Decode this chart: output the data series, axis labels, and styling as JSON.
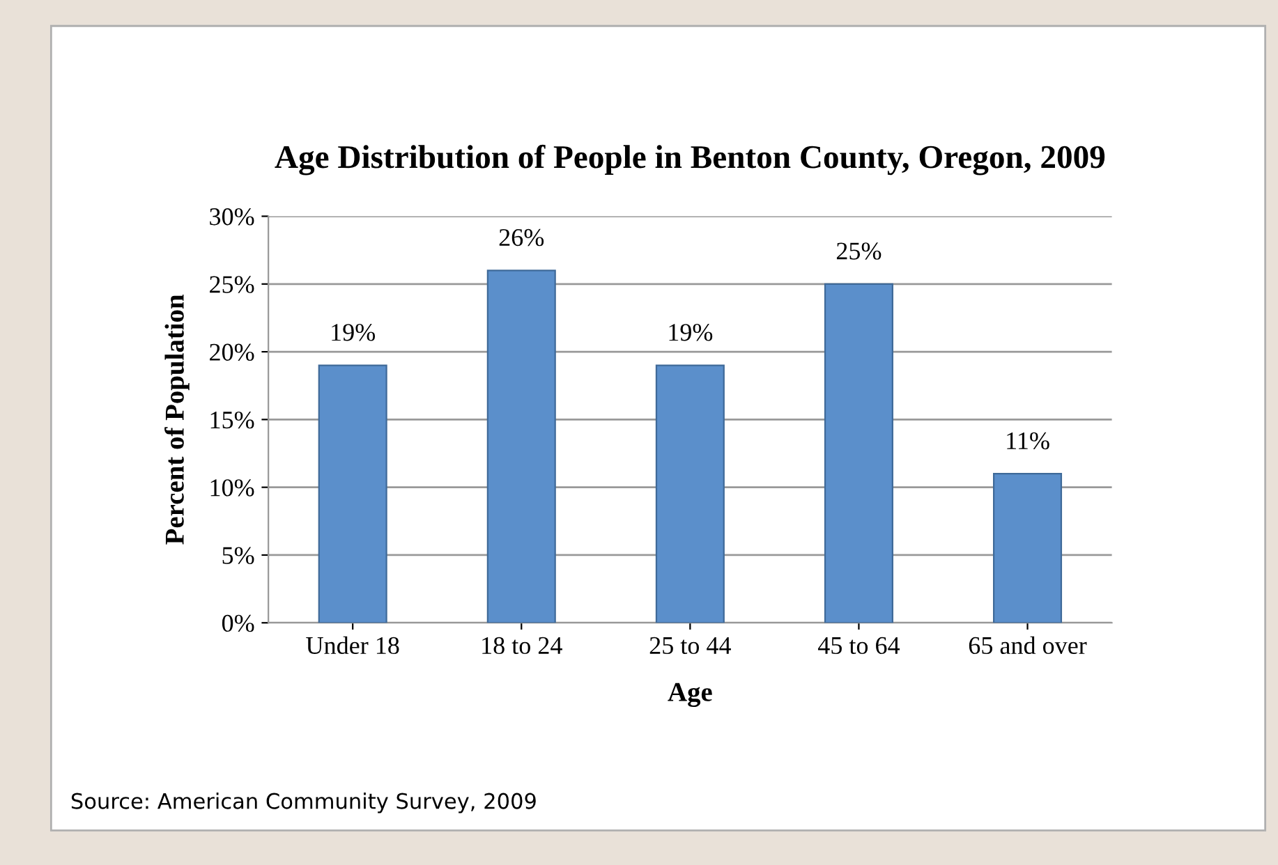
{
  "chart_data": {
    "type": "bar",
    "title": "Age Distribution of People in Benton County, Oregon, 2009",
    "xlabel": "Age",
    "ylabel": "Percent of Population",
    "categories": [
      "Under 18",
      "18 to 24",
      "25 to 44",
      "45 to 64",
      "65 and over"
    ],
    "values": [
      19,
      26,
      19,
      25,
      11
    ],
    "value_labels": [
      "19%",
      "26%",
      "19%",
      "25%",
      "11%"
    ],
    "color": "#5b8fcb",
    "ylim": [
      0,
      30
    ],
    "yticks": [
      {
        "value": 0,
        "label": "0%"
      },
      {
        "value": 5,
        "label": "5%"
      },
      {
        "value": 10,
        "label": "10%"
      },
      {
        "value": 15,
        "label": "15%"
      },
      {
        "value": 20,
        "label": "20%"
      },
      {
        "value": 25,
        "label": "25%"
      },
      {
        "value": 30,
        "label": "30%"
      }
    ],
    "grid": "y",
    "annotations": [
      "Source: American Community Survey, 2009"
    ]
  }
}
